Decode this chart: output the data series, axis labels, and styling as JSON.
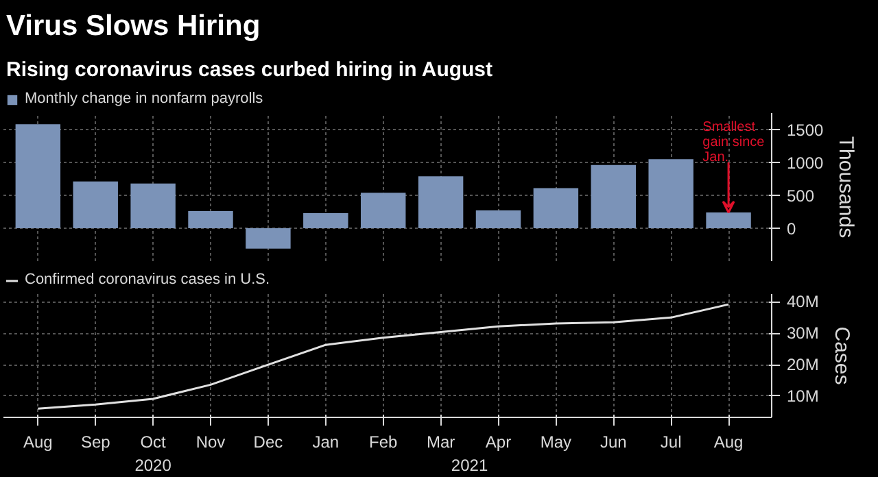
{
  "chart_data": [
    {
      "type": "bar",
      "title": "Virus Slows Hiring",
      "subtitle": "Rising coronavirus cases curbed hiring in August",
      "ylabel": "Thousands",
      "categories": [
        null,
        null,
        null,
        null,
        null,
        null,
        null,
        null,
        null,
        null,
        null,
        null,
        null
      ],
      "series": [
        {
          "name": "Monthly change in nonfarm payrolls",
          "color": "#7b93b8",
          "values": [
            1580,
            710,
            680,
            260,
            -310,
            230,
            540,
            790,
            270,
            610,
            960,
            1050,
            240
          ]
        }
      ],
      "ylim": [
        -500,
        1750
      ],
      "yticks": [
        0,
        500,
        1000,
        1500
      ],
      "grid": true,
      "legend": "top left",
      "tick_labels": "y",
      "annotations": [
        {
          "text": "Smallest gain since Jan.",
          "y": 240
        }
      ]
    },
    {
      "type": "line",
      "ylabel": "Cases",
      "categories": [
        "Aug",
        "Sep",
        "Oct",
        "Nov",
        "Dec",
        "Jan",
        "Feb",
        "Mar",
        "Apr",
        "May",
        "Jun",
        "Jul",
        "Aug"
      ],
      "series": [
        {
          "name": "Confirmed coronavirus cases in U.S.",
          "color": "#e0e0e0",
          "values": [
            6.0,
            7.3,
            9.1,
            13.6,
            20.0,
            26.3,
            28.6,
            30.4,
            32.2,
            33.1,
            33.5,
            35.0,
            39.2
          ]
        }
      ],
      "ylim": [
        3.2,
        42.5
      ],
      "yticks": [
        {
          "value": 10,
          "label": "10M"
        },
        {
          "value": 20,
          "label": "20M"
        },
        {
          "value": 30,
          "label": "30M"
        },
        {
          "value": 40,
          "label": "40M"
        }
      ],
      "grid": true,
      "legend": "top left",
      "annotations": [
        "2020",
        "2021"
      ]
    }
  ]
}
